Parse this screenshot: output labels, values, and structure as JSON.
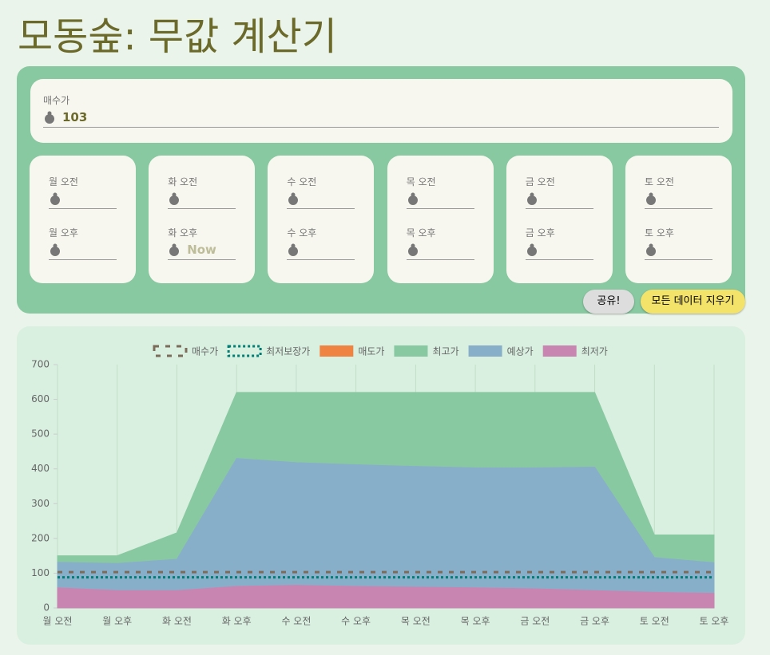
{
  "header": {
    "title": "모동숲: 무값 계산기"
  },
  "buy_price": {
    "label": "매수가",
    "value": "103"
  },
  "days": [
    {
      "am": "월 오전",
      "pm": "월 오후"
    },
    {
      "am": "화 오전",
      "pm": "화 오후",
      "pm_placeholder": "Now"
    },
    {
      "am": "수 오전",
      "pm": "수 오후"
    },
    {
      "am": "목 오전",
      "pm": "목 오후"
    },
    {
      "am": "금 오전",
      "pm": "금 오후"
    },
    {
      "am": "토 오전",
      "pm": "토 오후"
    }
  ],
  "buttons": {
    "share": "공유!",
    "clear": "모든 데이터 지우기"
  },
  "chart_data": {
    "type": "area",
    "categories": [
      "월 오전",
      "월 오후",
      "화 오전",
      "화 오후",
      "수 오전",
      "수 오후",
      "목 오전",
      "목 오후",
      "금 오전",
      "금 오후",
      "토 오전",
      "토 오후"
    ],
    "series": [
      {
        "name": "매수가",
        "color": "#7b6c5a",
        "line_style": "dashed",
        "values": [
          103,
          103,
          103,
          103,
          103,
          103,
          103,
          103,
          103,
          103,
          103,
          103
        ]
      },
      {
        "name": "최저보장가",
        "color": "#007d75",
        "line_style": "dotted",
        "values": [
          88,
          88,
          88,
          88,
          88,
          88,
          88,
          88,
          88,
          88,
          88,
          88
        ]
      },
      {
        "name": "매도가",
        "color": "#ef8341",
        "fill": true,
        "values": [
          null,
          null,
          null,
          null,
          null,
          null,
          null,
          null,
          null,
          null,
          null,
          null
        ]
      },
      {
        "name": "최고가",
        "color": "#88c9a1",
        "fill": true,
        "values": [
          150,
          150,
          216,
          620,
          620,
          620,
          620,
          620,
          620,
          620,
          210,
          210
        ]
      },
      {
        "name": "예상가",
        "color": "#88afc9",
        "fill": true,
        "values": [
          131,
          128,
          140,
          430,
          418,
          412,
          407,
          403,
          403,
          405,
          145,
          130
        ]
      },
      {
        "name": "최저가",
        "color": "#c985b1",
        "fill": true,
        "values": [
          58,
          50,
          50,
          62,
          65,
          62,
          60,
          58,
          55,
          50,
          45,
          42
        ]
      }
    ],
    "ylim": [
      0,
      700
    ],
    "yticks": [
      0,
      100,
      200,
      300,
      400,
      500,
      600,
      700
    ],
    "grid": "x"
  }
}
